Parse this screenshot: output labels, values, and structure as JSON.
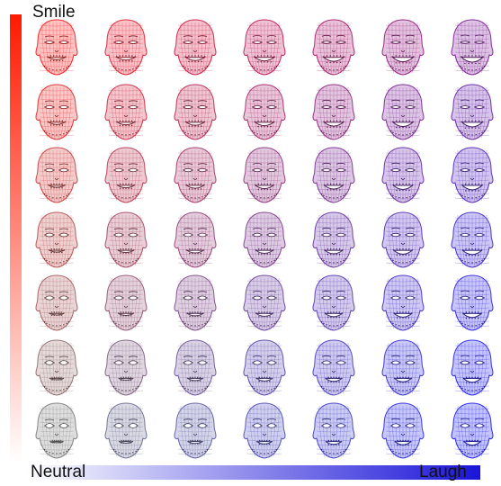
{
  "labels": {
    "top": "Smile",
    "bottom_left": "Neutral",
    "bottom_right": "Laugh"
  },
  "colors": {
    "neutral": "#8a8a8a",
    "smile": "#ff2a2a",
    "laugh": "#2b2bff",
    "vertical_bar_top": "#ff1a00",
    "vertical_bar_bottom": "#ffffff",
    "horizontal_bar_left": "#ffffff",
    "horizontal_bar_right": "#1a14d8"
  },
  "grid": {
    "rows": 7,
    "cols": 7,
    "face_icon": "wireframe-head-icon",
    "axis_vertical": "smile-intensity",
    "axis_horizontal": "laugh-intensity"
  }
}
